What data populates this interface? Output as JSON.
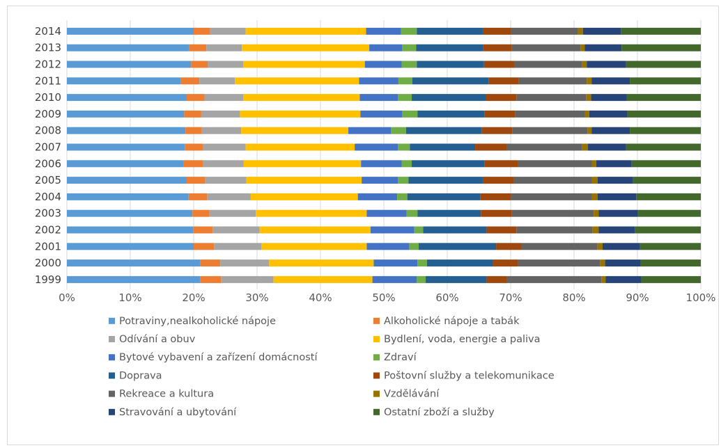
{
  "chart_data": {
    "type": "bar",
    "orientation": "horizontal",
    "stacked": "percent",
    "title": "",
    "xlabel": "",
    "ylabel": "",
    "xlim": [
      0,
      100
    ],
    "x_ticks": [
      "0%",
      "10%",
      "20%",
      "30%",
      "40%",
      "50%",
      "60%",
      "70%",
      "80%",
      "90%",
      "100%"
    ],
    "grid": true,
    "legend_position": "bottom",
    "categories": [
      "2014",
      "2013",
      "2012",
      "2011",
      "2010",
      "2009",
      "2008",
      "2007",
      "2006",
      "2005",
      "2004",
      "2003",
      "2002",
      "2001",
      "2000",
      "1999"
    ],
    "series": [
      {
        "name": "Potraviny,nealkoholické nápoje",
        "color": "#5b9bd5",
        "values": [
          20.0,
          19.3,
          19.6,
          18.0,
          18.9,
          18.5,
          18.7,
          18.6,
          18.4,
          18.9,
          19.2,
          19.8,
          19.9,
          20.0,
          21.0,
          21.0
        ]
      },
      {
        "name": "Alkoholické nápoje a tabák",
        "color": "#ed7d31",
        "values": [
          2.6,
          2.7,
          2.6,
          2.9,
          2.8,
          2.7,
          2.6,
          2.9,
          3.1,
          2.9,
          2.9,
          2.7,
          3.1,
          3.2,
          3.2,
          3.3
        ]
      },
      {
        "name": "Odívání a obuv",
        "color": "#a5a5a5",
        "values": [
          5.6,
          5.6,
          5.6,
          5.6,
          6.1,
          6.1,
          6.2,
          6.7,
          6.4,
          6.5,
          6.9,
          7.3,
          7.4,
          7.5,
          7.7,
          8.3
        ]
      },
      {
        "name": "Bydlení, voda, energie a paliva",
        "color": "#ffc000",
        "values": [
          19.0,
          20.1,
          19.2,
          19.6,
          18.4,
          19.0,
          16.9,
          17.2,
          18.5,
          18.2,
          16.9,
          17.5,
          17.5,
          16.6,
          16.5,
          15.6
        ]
      },
      {
        "name": "Bytové vybavení a zařízení domácností",
        "color": "#4472c4",
        "values": [
          5.5,
          5.2,
          5.8,
          6.2,
          6.0,
          6.6,
          6.7,
          6.8,
          6.4,
          5.7,
          6.2,
          6.3,
          6.9,
          6.7,
          6.9,
          7.0
        ]
      },
      {
        "name": "Zdraví",
        "color": "#70ad47",
        "values": [
          2.5,
          2.2,
          2.4,
          2.2,
          2.2,
          2.4,
          2.4,
          1.9,
          1.6,
          1.7,
          1.6,
          1.7,
          1.4,
          1.5,
          1.5,
          1.4
        ]
      },
      {
        "name": "Doprava",
        "color": "#255e91",
        "values": [
          10.4,
          10.6,
          10.6,
          12.0,
          11.7,
          10.6,
          11.9,
          10.3,
          11.5,
          11.7,
          11.5,
          10.0,
          10.0,
          12.2,
          10.4,
          9.6
        ]
      },
      {
        "name": "Poštovní služby a telekomunikace",
        "color": "#9e480e",
        "values": [
          4.4,
          4.5,
          4.8,
          4.8,
          4.8,
          4.8,
          4.9,
          5.0,
          5.2,
          4.9,
          4.9,
          4.9,
          4.7,
          4.0,
          4.0,
          3.2
        ]
      },
      {
        "name": "Rekreace a kultura",
        "color": "#636363",
        "values": [
          10.6,
          10.8,
          10.7,
          10.7,
          11.0,
          11.0,
          11.8,
          11.9,
          11.7,
          12.3,
          12.7,
          12.9,
          12.0,
          12.0,
          12.9,
          14.9
        ]
      },
      {
        "name": "Vzdělávání",
        "color": "#997300",
        "values": [
          0.8,
          0.7,
          0.7,
          0.8,
          0.8,
          0.7,
          0.7,
          0.9,
          0.7,
          0.9,
          0.9,
          0.8,
          1.0,
          0.8,
          0.8,
          0.7
        ]
      },
      {
        "name": "Stravování a ubytování",
        "color": "#264478",
        "values": [
          6.0,
          5.8,
          6.2,
          6.0,
          5.6,
          6.0,
          6.0,
          6.0,
          5.6,
          5.6,
          6.1,
          6.1,
          5.7,
          5.9,
          5.6,
          5.6
        ]
      },
      {
        "name": "Ostatní zboží a služby",
        "color": "#43682b",
        "values": [
          12.6,
          12.5,
          11.8,
          11.2,
          11.7,
          11.6,
          11.2,
          11.8,
          10.9,
          10.7,
          10.2,
          10.0,
          10.4,
          9.6,
          9.5,
          9.4
        ]
      }
    ]
  }
}
